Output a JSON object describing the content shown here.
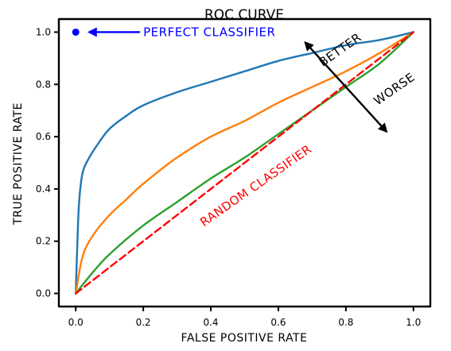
{
  "chart_data": {
    "type": "line",
    "title": "ROC CURVE",
    "xlabel": "FALSE POSITIVE RATE",
    "ylabel": "TRUE POSITIVE RATE",
    "xlim": [
      -0.05,
      1.05
    ],
    "ylim": [
      -0.05,
      1.05
    ],
    "xticks": [
      0.0,
      0.2,
      0.4,
      0.6,
      0.8,
      1.0
    ],
    "xtick_labels": [
      "0.0",
      "0.2",
      "0.4",
      "0.6",
      "0.8",
      "1.0"
    ],
    "yticks": [
      0.0,
      0.2,
      0.4,
      0.6,
      0.8,
      1.0
    ],
    "ytick_labels": [
      "0.0",
      "0.2",
      "0.4",
      "0.6",
      "0.8",
      "1.0"
    ],
    "grid": false,
    "legend": "none",
    "style": "xkcd",
    "series": [
      {
        "color": "#1f77b4",
        "x": [
          0.0,
          0.005,
          0.01,
          0.02,
          0.04,
          0.07,
          0.1,
          0.15,
          0.2,
          0.3,
          0.4,
          0.5,
          0.6,
          0.7,
          0.8,
          0.9,
          1.0
        ],
        "y": [
          0.0,
          0.2,
          0.35,
          0.46,
          0.52,
          0.58,
          0.63,
          0.68,
          0.72,
          0.77,
          0.81,
          0.85,
          0.89,
          0.92,
          0.95,
          0.97,
          1.0
        ]
      },
      {
        "color": "#ff7f0e",
        "x": [
          0.0,
          0.02,
          0.05,
          0.1,
          0.15,
          0.2,
          0.3,
          0.4,
          0.5,
          0.6,
          0.7,
          0.8,
          0.9,
          1.0
        ],
        "y": [
          0.0,
          0.14,
          0.22,
          0.3,
          0.36,
          0.42,
          0.52,
          0.6,
          0.66,
          0.73,
          0.79,
          0.85,
          0.92,
          1.0
        ]
      },
      {
        "color": "#2ca02c",
        "x": [
          0.0,
          0.05,
          0.1,
          0.2,
          0.3,
          0.4,
          0.5,
          0.6,
          0.7,
          0.8,
          0.9,
          1.0
        ],
        "y": [
          0.0,
          0.08,
          0.15,
          0.26,
          0.35,
          0.44,
          0.52,
          0.61,
          0.7,
          0.79,
          0.88,
          1.0
        ]
      },
      {
        "color": "#ff0000",
        "dash": "dashed",
        "x": [
          0.0,
          1.0
        ],
        "y": [
          0.0,
          1.0
        ]
      }
    ],
    "points": [
      {
        "x": 0.0,
        "y": 1.0,
        "color": "#0000ff"
      }
    ],
    "annotations": [
      {
        "text": "PERFECT CLASSIFIER",
        "color": "#0000ff",
        "x": 0.2,
        "y": 1.0,
        "arrow_to": [
          0.04,
          1.0
        ]
      },
      {
        "text": "RANDOM CLASSIFIER",
        "color": "#ff0000",
        "x": 0.54,
        "y": 0.4,
        "rotation_deg": -35
      },
      {
        "text": "BETTER",
        "color": "#000000",
        "x": 0.79,
        "y": 0.92,
        "rotation_deg": -35
      },
      {
        "text": "WORSE",
        "color": "#000000",
        "x": 0.95,
        "y": 0.77,
        "rotation_deg": -35
      },
      {
        "type": "double-arrow",
        "from": [
          0.68,
          0.96
        ],
        "to": [
          0.92,
          0.62
        ],
        "color": "#000000"
      }
    ]
  }
}
